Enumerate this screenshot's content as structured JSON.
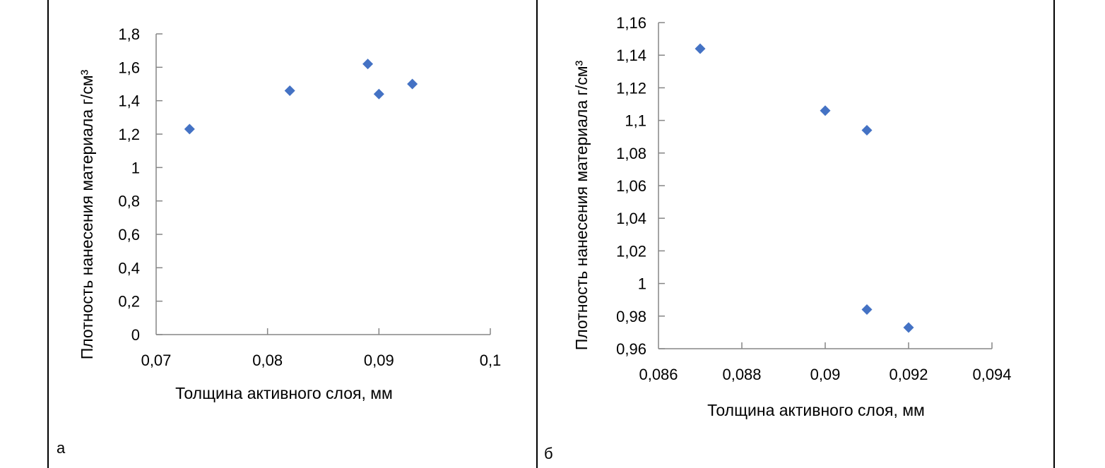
{
  "figure": {
    "panel_labels": [
      "а",
      "б"
    ]
  },
  "colors": {
    "marker": "#4472C4",
    "axis": "#868686",
    "border": "#000000"
  },
  "chart_data": [
    {
      "type": "scatter",
      "panel": "а",
      "title": "",
      "xlabel": "Толщина активного слоя, мм",
      "ylabel": "Плотность нанесения материала г/см³",
      "xlim": [
        0.07,
        0.1
      ],
      "ylim": [
        0,
        1.8
      ],
      "x_ticks": [
        0.07,
        0.08,
        0.09,
        0.1
      ],
      "x_tick_labels": [
        "0,07",
        "0,08",
        "0,09",
        "0,1"
      ],
      "y_ticks": [
        0,
        0.2,
        0.4,
        0.6,
        0.8,
        1,
        1.2,
        1.4,
        1.6,
        1.8
      ],
      "y_tick_labels": [
        "0",
        "0,2",
        "0,4",
        "0,6",
        "0,8",
        "1",
        "1,2",
        "1,4",
        "1,6",
        "1,8"
      ],
      "grid": false,
      "legend": "none",
      "marker": "diamond",
      "points": [
        {
          "x": 0.073,
          "y": 1.23
        },
        {
          "x": 0.082,
          "y": 1.46
        },
        {
          "x": 0.089,
          "y": 1.62
        },
        {
          "x": 0.09,
          "y": 1.44
        },
        {
          "x": 0.093,
          "y": 1.5
        }
      ]
    },
    {
      "type": "scatter",
      "panel": "б",
      "title": "",
      "xlabel": "Толщина активного слоя, мм",
      "ylabel": "Плотность нанесения материала г/см³",
      "xlim": [
        0.086,
        0.094
      ],
      "ylim": [
        0.96,
        1.16
      ],
      "x_ticks": [
        0.086,
        0.088,
        0.09,
        0.092,
        0.094
      ],
      "x_tick_labels": [
        "0,086",
        "0,088",
        "0,09",
        "0,092",
        "0,094"
      ],
      "y_ticks": [
        0.96,
        0.98,
        1,
        1.02,
        1.04,
        1.06,
        1.08,
        1.1,
        1.12,
        1.14,
        1.16
      ],
      "y_tick_labels": [
        "0,96",
        "0,98",
        "1",
        "1,02",
        "1,04",
        "1,06",
        "1,08",
        "1,1",
        "1,12",
        "1,14",
        "1,16"
      ],
      "grid": false,
      "legend": "none",
      "marker": "diamond",
      "points": [
        {
          "x": 0.087,
          "y": 1.144
        },
        {
          "x": 0.09,
          "y": 1.106
        },
        {
          "x": 0.091,
          "y": 1.094
        },
        {
          "x": 0.091,
          "y": 0.984
        },
        {
          "x": 0.092,
          "y": 0.973
        }
      ]
    }
  ]
}
